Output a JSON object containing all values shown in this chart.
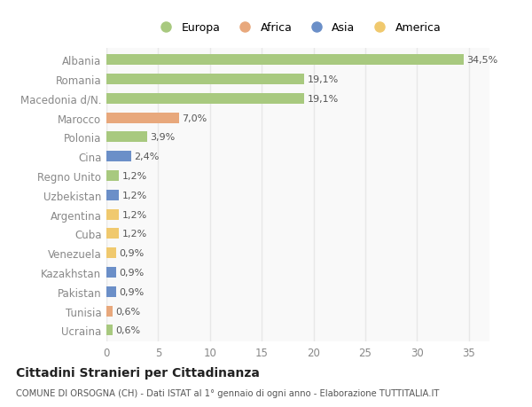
{
  "countries": [
    "Albania",
    "Romania",
    "Macedonia d/N.",
    "Marocco",
    "Polonia",
    "Cina",
    "Regno Unito",
    "Uzbekistan",
    "Argentina",
    "Cuba",
    "Venezuela",
    "Kazakhstan",
    "Pakistan",
    "Tunisia",
    "Ucraina"
  ],
  "values": [
    34.5,
    19.1,
    19.1,
    7.0,
    3.9,
    2.4,
    1.2,
    1.2,
    1.2,
    1.2,
    0.9,
    0.9,
    0.9,
    0.6,
    0.6
  ],
  "labels": [
    "34,5%",
    "19,1%",
    "19,1%",
    "7,0%",
    "3,9%",
    "2,4%",
    "1,2%",
    "1,2%",
    "1,2%",
    "1,2%",
    "0,9%",
    "0,9%",
    "0,9%",
    "0,6%",
    "0,6%"
  ],
  "continents": [
    "Europa",
    "Europa",
    "Europa",
    "Africa",
    "Europa",
    "Asia",
    "Europa",
    "Asia",
    "America",
    "America",
    "America",
    "Asia",
    "Asia",
    "Africa",
    "Europa"
  ],
  "continent_colors": {
    "Europa": "#a8c97f",
    "Africa": "#e8a87c",
    "Asia": "#6b8fc8",
    "America": "#f0c96e"
  },
  "legend_order": [
    "Europa",
    "Africa",
    "Asia",
    "America"
  ],
  "title": "Cittadini Stranieri per Cittadinanza",
  "subtitle": "COMUNE DI ORSOGNA (CH) - Dati ISTAT al 1° gennaio di ogni anno - Elaborazione TUTTITALIA.IT",
  "xlim": [
    0,
    37
  ],
  "xticks": [
    0,
    5,
    10,
    15,
    20,
    25,
    30,
    35
  ],
  "background_color": "#ffffff",
  "plot_bg_color": "#f9f9f9",
  "grid_color": "#e8e8e8",
  "bar_height": 0.55,
  "label_color": "#555555",
  "tick_color": "#888888"
}
